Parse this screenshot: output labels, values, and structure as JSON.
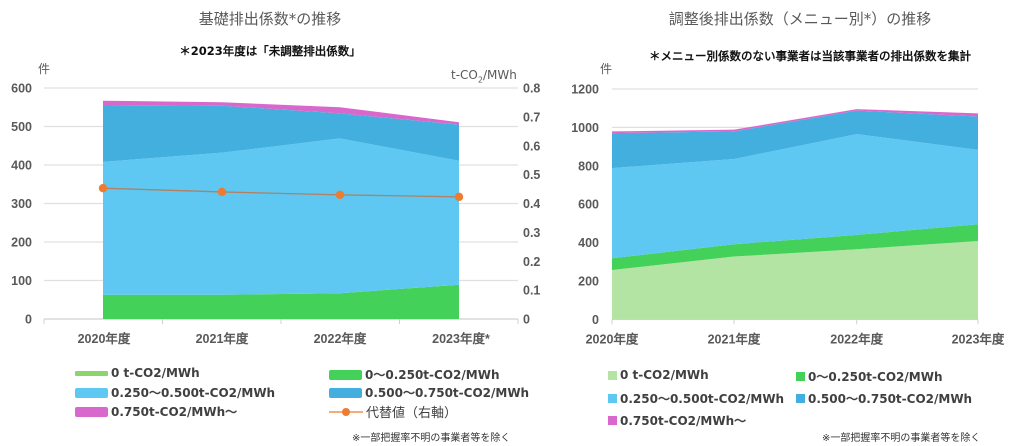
{
  "chart_data": [
    {
      "type": "area",
      "stacked": true,
      "title": "基礎排出係数*の推移",
      "subtitle": "＊2023年度は「未調整排出係数」",
      "ylabel": "件",
      "y2label": "t-CO2/MWh",
      "categories": [
        "2020年度",
        "2021年度",
        "2022年度",
        "2023年度*"
      ],
      "ylim": [
        0,
        600
      ],
      "yticks": [
        0,
        100,
        200,
        300,
        400,
        500,
        600
      ],
      "y2lim": [
        0,
        0.8
      ],
      "y2ticks": [
        "0",
        "0.1",
        "0.2",
        "0.3",
        "0.4",
        "0.5",
        "0.6",
        "0.7",
        "0.8"
      ],
      "grid": true,
      "series": [
        {
          "name": "0 t-CO2/MWh",
          "color": "#8fd46a",
          "values": [
            0,
            0,
            0,
            0
          ]
        },
        {
          "name": "0～0.250 t-CO2/MWh",
          "color": "#43d15a",
          "values": [
            63,
            63,
            67,
            89
          ]
        },
        {
          "name": "0.250～0.500 t-CO2/MWh",
          "color": "#5ec8f2",
          "values": [
            345,
            369,
            402,
            322
          ]
        },
        {
          "name": "0.500～0.750 t-CO2/MWh",
          "color": "#42afdf",
          "values": [
            148,
            122,
            65,
            94
          ]
        },
        {
          "name": "0.750 t-CO2/MWh～",
          "color": "#d968cc",
          "values": [
            11,
            9,
            16,
            6
          ]
        }
      ],
      "line_series": {
        "name": "代替値（右軸）",
        "color": "#ef7b2f",
        "axis": "right",
        "values": [
          0.453,
          0.44,
          0.43,
          0.423
        ]
      },
      "legend": "bottom",
      "note": "※一部把握率不明の事業者等を除く"
    },
    {
      "type": "area",
      "stacked": true,
      "title": "調整後排出係数（メニュー別*）の推移",
      "subtitle": "＊メニュー別係数のない事業者は当該事業者の排出係数を集計",
      "ylabel": "件",
      "categories": [
        "2020年度",
        "2021年度",
        "2022年度",
        "2023年度"
      ],
      "ylim": [
        0,
        1200
      ],
      "yticks": [
        0,
        200,
        400,
        600,
        800,
        1000,
        1200
      ],
      "grid": true,
      "series": [
        {
          "name": "0 t-CO2/MWh",
          "color": "#b4e4a4",
          "values": [
            257,
            327,
            365,
            408
          ]
        },
        {
          "name": "0～0.250 t-CO2/MWh",
          "color": "#43d15a",
          "values": [
            61,
            64,
            75,
            87
          ]
        },
        {
          "name": "0.250～0.500 t-CO2/MWh",
          "color": "#5ec8f2",
          "values": [
            470,
            444,
            525,
            388
          ]
        },
        {
          "name": "0.500～0.750 t-CO2/MWh",
          "color": "#42afdf",
          "values": [
            182,
            144,
            122,
            174
          ]
        },
        {
          "name": "0.750 t-CO2/MWh～",
          "color": "#d968cc",
          "values": [
            9,
            9,
            8,
            16
          ]
        }
      ],
      "legend": "bottom",
      "note": "※一部把握率不明の事業者等を除く"
    }
  ],
  "legend_labels": {
    "s0": "0 t-CO2/MWh",
    "s1": "0～0.250t-CO2/MWh",
    "s2": "0.250～0.500t-CO2/MWh",
    "s3": "0.500～0.750t-CO2/MWh",
    "s4": "0.750t-CO2/MWh～",
    "line": "代替値（右軸）"
  }
}
